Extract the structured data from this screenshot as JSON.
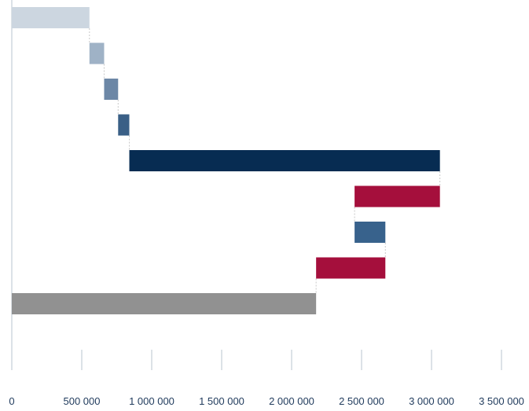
{
  "chart_data": {
    "type": "bar",
    "orientation": "horizontal",
    "subtype": "waterfall",
    "title": "",
    "xlabel": "",
    "ylabel": "",
    "xlim": [
      0,
      3500000
    ],
    "x_ticks": [
      0,
      500000,
      1000000,
      1500000,
      2000000,
      2500000,
      3000000,
      3500000
    ],
    "x_tick_labels": [
      "0",
      "500 000",
      "1 000 000",
      "1 500 000",
      "2 000 000",
      "2 500 000",
      "3 000 000",
      "3 500 000"
    ],
    "grid": false,
    "legend": "none",
    "bars": [
      {
        "start": 0,
        "end": 555000,
        "color": "#ccd6e0"
      },
      {
        "start": 555000,
        "end": 660000,
        "color": "#9fb2c6"
      },
      {
        "start": 660000,
        "end": 760000,
        "color": "#6c87a6"
      },
      {
        "start": 760000,
        "end": 840000,
        "color": "#3a5f86"
      },
      {
        "start": 840000,
        "end": 3060000,
        "color": "#072c52"
      },
      {
        "start": 2450000,
        "end": 3060000,
        "color": "#a50f3c"
      },
      {
        "start": 2450000,
        "end": 2670000,
        "color": "#38628c"
      },
      {
        "start": 2175000,
        "end": 2670000,
        "color": "#a50f3c"
      },
      {
        "start": 0,
        "end": 2175000,
        "color": "#919191"
      }
    ]
  }
}
